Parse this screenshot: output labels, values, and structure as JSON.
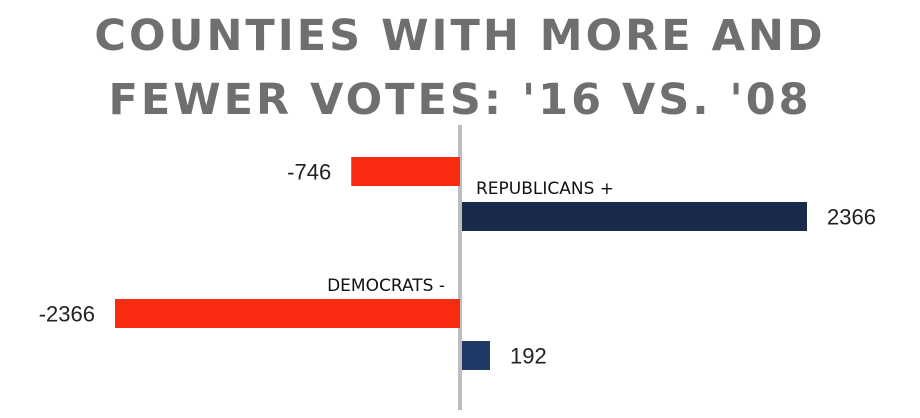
{
  "chart_data": {
    "type": "bar",
    "title": "COUNTIES WITH MORE AND\nFEWER VOTES: '16 VS. '08",
    "orientation": "horizontal",
    "xlim": [
      -2366,
      2366
    ],
    "bars": [
      {
        "value": -746,
        "label": "-746",
        "color": "#fb2a12"
      },
      {
        "value": 2366,
        "label": "2366",
        "color": "#1a2a4a"
      },
      {
        "value": -2366,
        "label": "-2366",
        "color": "#fb2a12"
      },
      {
        "value": 192,
        "label": "192",
        "color": "#1f3a66"
      }
    ],
    "annotations": [
      "REPUBLICANS +",
      "DEMOCRATS -"
    ],
    "axis_color": "#bdbdbd"
  }
}
